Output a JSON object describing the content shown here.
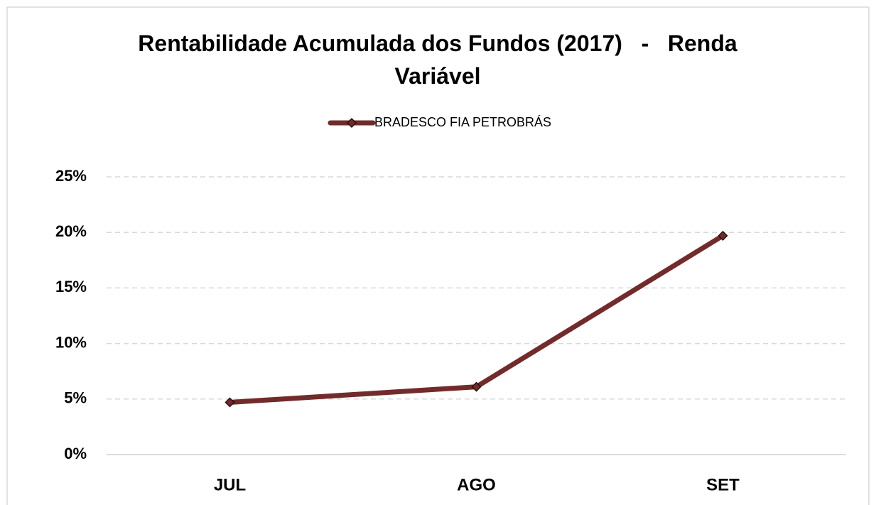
{
  "chart_data": {
    "type": "line",
    "title": "Rentabilidade Acumulada dos Fundos (2017)   -   Renda Variável",
    "categories": [
      "JUL",
      "AGO",
      "SET"
    ],
    "series": [
      {
        "name": "BRADESCO FIA PETROBRÁS",
        "color": "#722b2b",
        "values": [
          4.7,
          6.1,
          19.7
        ]
      }
    ],
    "ylim": [
      0,
      25
    ],
    "yticks": [
      {
        "value": 0,
        "label": "0%"
      },
      {
        "value": 5,
        "label": "5%"
      },
      {
        "value": 10,
        "label": "10%"
      },
      {
        "value": 15,
        "label": "15%"
      },
      {
        "value": 20,
        "label": "20%"
      },
      {
        "value": 25,
        "label": "25%"
      }
    ],
    "grid": true,
    "legend": "top"
  }
}
